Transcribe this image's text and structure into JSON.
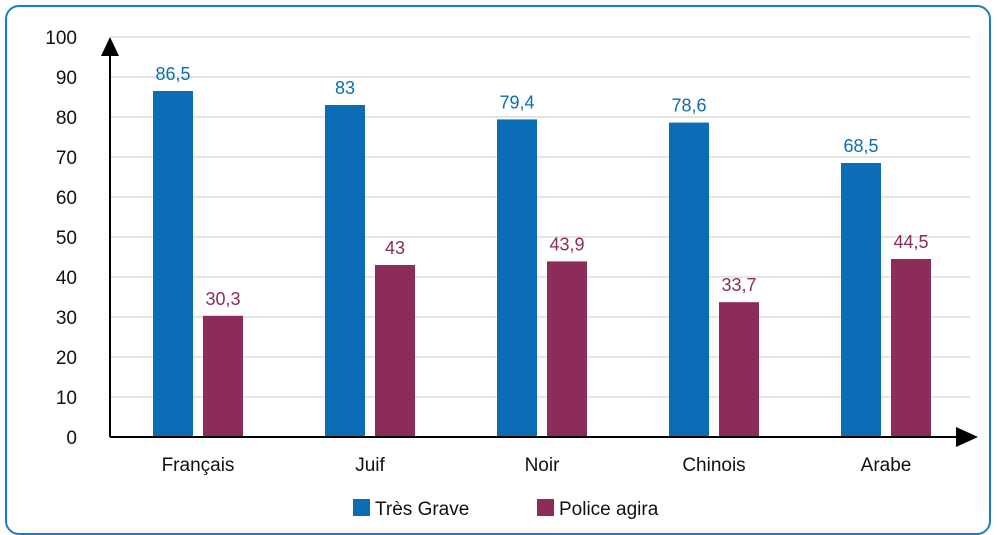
{
  "chart_data": {
    "type": "bar",
    "categories": [
      "Français",
      "Juif",
      "Noir",
      "Chinois",
      "Arabe"
    ],
    "series": [
      {
        "name": "Très Grave",
        "color": "#0b6db5",
        "values": [
          86.5,
          83,
          79.4,
          78.6,
          68.5
        ],
        "labels": [
          "86,5",
          "83",
          "79,4",
          "78,6",
          "68,5"
        ]
      },
      {
        "name": "Police agira",
        "color": "#8b2c5a",
        "values": [
          30.3,
          43,
          43.9,
          33.7,
          44.5
        ],
        "labels": [
          "30,3",
          "43",
          "43,9",
          "33,7",
          "44,5"
        ]
      }
    ],
    "ylim": [
      0,
      100
    ],
    "yticks": [
      "0",
      "10",
      "20",
      "30",
      "40",
      "50",
      "60",
      "70",
      "80",
      "90",
      "100"
    ],
    "grid": true,
    "legend_position": "bottom-center"
  }
}
